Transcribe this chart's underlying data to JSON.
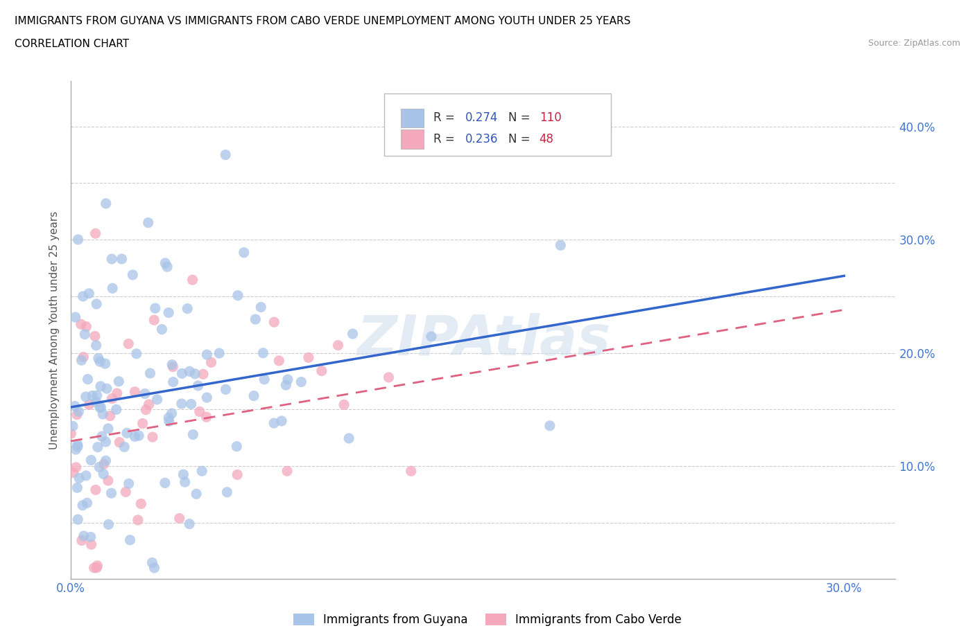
{
  "title_line1": "IMMIGRANTS FROM GUYANA VS IMMIGRANTS FROM CABO VERDE UNEMPLOYMENT AMONG YOUTH UNDER 25 YEARS",
  "title_line2": "CORRELATION CHART",
  "source_text": "Source: ZipAtlas.com",
  "ylabel": "Unemployment Among Youth under 25 years",
  "xlim": [
    0.0,
    0.32
  ],
  "ylim": [
    0.0,
    0.44
  ],
  "x_tick_positions": [
    0.0,
    0.05,
    0.1,
    0.15,
    0.2,
    0.25,
    0.3
  ],
  "x_tick_labels": [
    "0.0%",
    "",
    "",
    "",
    "",
    "",
    "30.0%"
  ],
  "y_tick_positions": [
    0.0,
    0.05,
    0.1,
    0.15,
    0.2,
    0.25,
    0.3,
    0.35,
    0.4
  ],
  "y_tick_labels_left": [
    "",
    "",
    "",
    "",
    "",
    "",
    "",
    "",
    ""
  ],
  "y_tick_labels_right": [
    "",
    "",
    "10.0%",
    "",
    "20.0%",
    "",
    "30.0%",
    "",
    "40.0%"
  ],
  "guyana_color": "#a8c4e8",
  "cabo_verde_color": "#f4a8bc",
  "guyana_line_color": "#3366cc",
  "cabo_verde_line_color": "#e06080",
  "r_guyana": 0.274,
  "n_guyana": 110,
  "r_cabo_verde": 0.236,
  "n_cabo_verde": 48,
  "watermark": "ZIPAtlas",
  "legend_text_color": "#3355bb",
  "legend_n_color": "#cc2244",
  "blue_line_y0": 0.152,
  "blue_line_y1": 0.268,
  "pink_line_y0": 0.122,
  "pink_line_y1": 0.238
}
